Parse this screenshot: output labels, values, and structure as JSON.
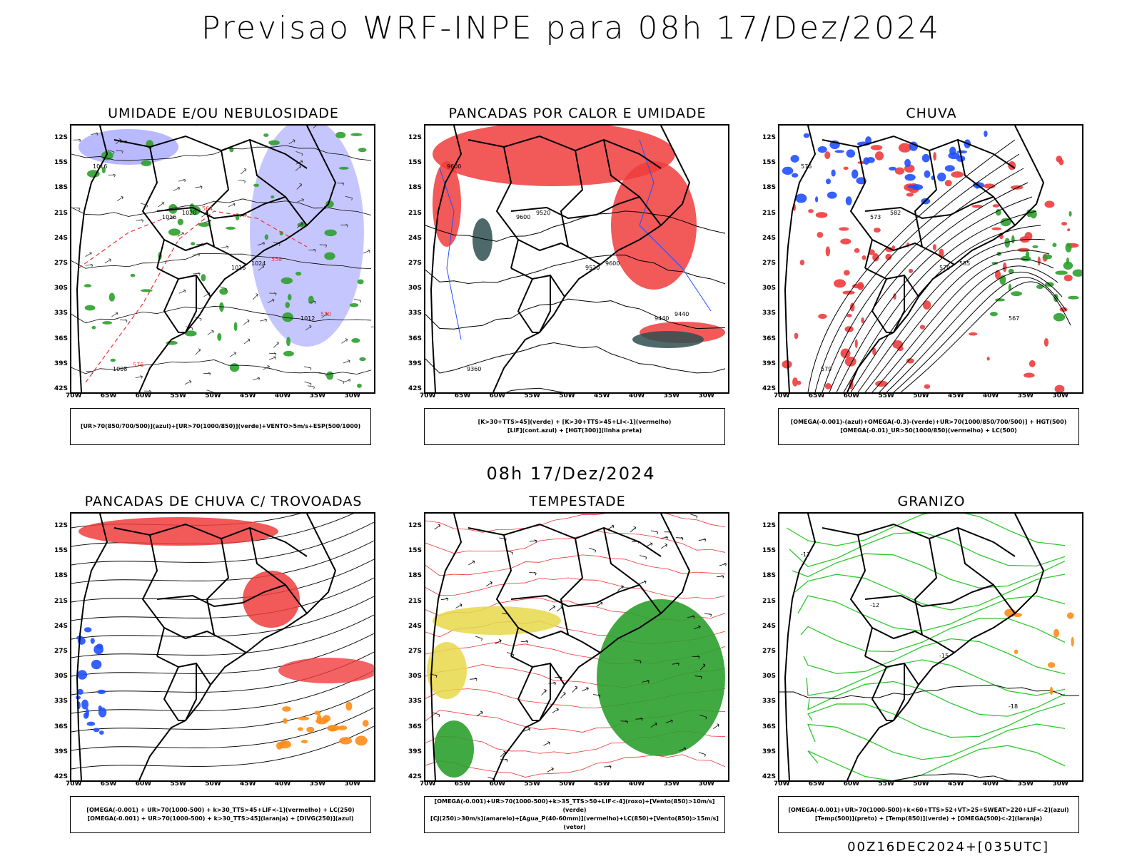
{
  "main_title": "Previsao WRF-INPE  para 08h 17/Dez/2024",
  "mid_title": "08h 17/Dez/2024",
  "footer": "00Z16DEC2024+[035UTC]",
  "lat_labels": [
    "12S",
    "15S",
    "18S",
    "21S",
    "24S",
    "27S",
    "30S",
    "33S",
    "36S",
    "39S",
    "42S"
  ],
  "lon_labels": [
    "70W",
    "65W",
    "60W",
    "55W",
    "50W",
    "45W",
    "40W",
    "35W",
    "30W"
  ],
  "panels": [
    {
      "title": "UMIDADE E/OU NEBULOSIDADE",
      "legend1": "[UR>70(850/700/500)](azul)+[UR>70(1000/850)](verde)+VENTO>5m/s+ESP(500/1000)",
      "legend2": "",
      "contour_labels": [
        "1016",
        "1016",
        "1016",
        "1012",
        "1008",
        "1020",
        "1024",
        "570",
        "576",
        "564",
        "558"
      ]
    },
    {
      "title": "PANCADAS POR CALOR E UMIDADE",
      "legend1": "[K>30+TTS>45](verde) + [K>30+TTS>45+LI<-1](vermelho)",
      "legend2": "[LIF](cont.azul) + [HGT(300)](linha preta)",
      "contour_labels": [
        "9600",
        "9600",
        "9520",
        "9440",
        "9360",
        "9520",
        "9600",
        "9440"
      ]
    },
    {
      "title": "CHUVA",
      "legend1": "[OMEGA(-0.001)-(azul)+OMEGA(-0.3)-(verde)+UR>70(1000/850/700/500)] + HGT(500)",
      "legend2": "[OMEGA(-0.01)_UR>50(1000/850)(vermelho) + LC(500)",
      "contour_labels": [
        "576",
        "573",
        "570",
        "567",
        "579",
        "582",
        "585"
      ]
    },
    {
      "title": "PANCADAS DE CHUVA C/ TROVOADAS",
      "legend1": "[OMEGA(-0.001) + UR>70(1000-500) + k>30_TTS>45+LIF<-1](vermelho) + LC(250)",
      "legend2": "[OMEGA(-0.001) + UR>70(1000-500) + k>30_TTS>45](laranja) + [DIVG(250)](azul)",
      "contour_labels": []
    },
    {
      "title": "TEMPESTADE",
      "legend1": "[OMEGA(-0.001)+UR>70(1000-500)+k>35_TTS>50+LIF<-4](roxo)+[Vento(850)>10m/s](verde)",
      "legend2": "[CJ(250)>30m/s](amarelo)+[Agua_P(40-60mm)](vermelho)+LC(850)+[Vento(850)>15m/s](vetor)",
      "contour_labels": []
    },
    {
      "title": "GRANIZO",
      "legend1": "[OMEGA(-0.001)+UR>70(1000-500)+k<60+TTS>52+VT>25+SWEAT>220+LIF<-2](azul)",
      "legend2": "[Temp(500)](preto) + [Temp(850)](verde) + [OMEGA(500)<-2](laranja)",
      "contour_labels": [
        "-12",
        "-12",
        "-15",
        "-18"
      ]
    }
  ]
}
